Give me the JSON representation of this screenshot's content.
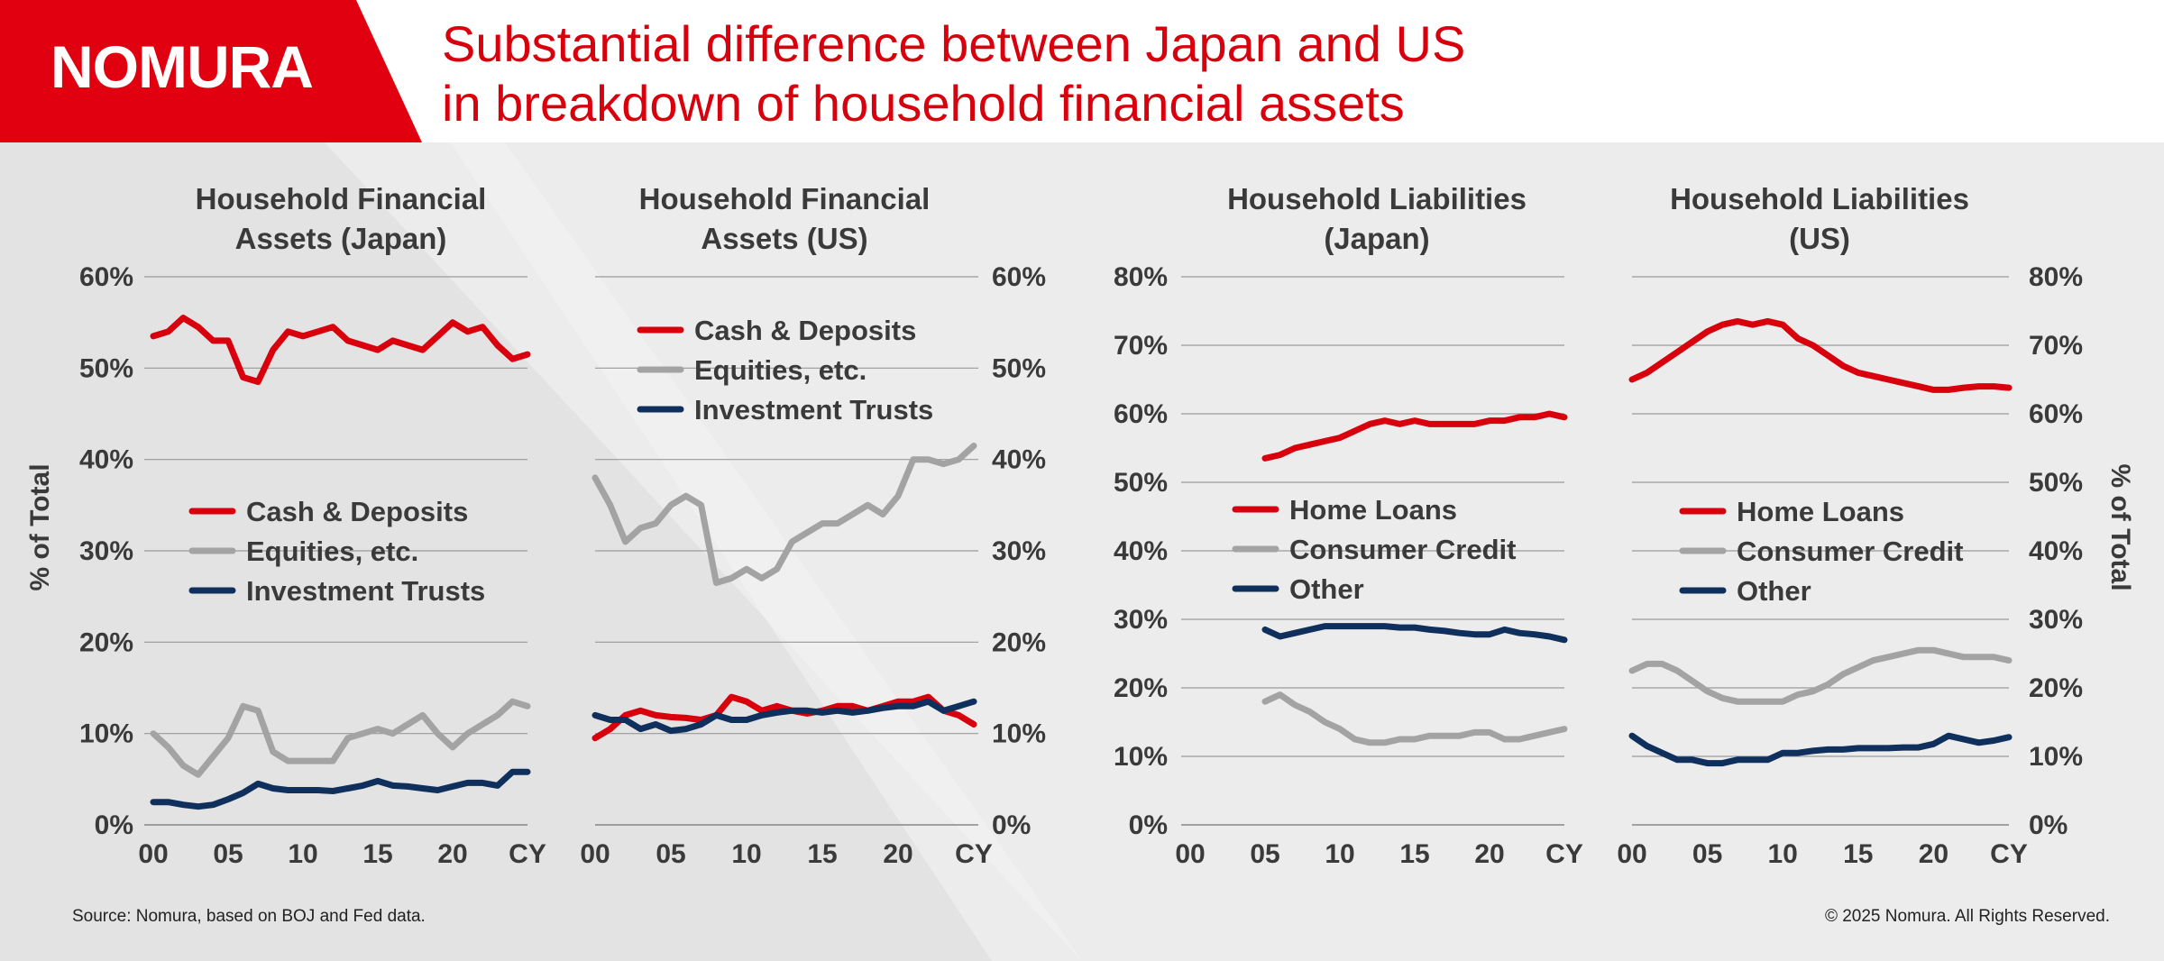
{
  "header": {
    "logo": "NOMURA",
    "title_line1": "Substantial difference between Japan and US",
    "title_line2": "in breakdown of household financial assets"
  },
  "footer": {
    "source": "Source: Nomura, based on BOJ and Fed data.",
    "copyright": "© 2025 Nomura. All Rights Reserved."
  },
  "colors": {
    "red": "#d9000d",
    "gray": "#a3a3a3",
    "navy": "#0f2f5c",
    "brand": "#e1000f"
  },
  "axis_labels": {
    "left_ylabel": "% of Total",
    "right_ylabel": "% of Total"
  },
  "chart_data": [
    {
      "id": "assets_japan",
      "type": "line",
      "title": [
        "Household Financial",
        "Assets (Japan)"
      ],
      "ylim": [
        0,
        60
      ],
      "yticks": [
        "0%",
        "10%",
        "20%",
        "30%",
        "40%",
        "50%",
        "60%"
      ],
      "xlim": [
        2000,
        2025
      ],
      "xticks": [
        "00",
        "05",
        "10",
        "15",
        "20",
        "CY"
      ],
      "legend": "center-left",
      "grid": true,
      "series": [
        {
          "name": "Cash & Deposits",
          "color": "red",
          "x": [
            2000,
            2001,
            2002,
            2003,
            2004,
            2005,
            2006,
            2007,
            2008,
            2009,
            2010,
            2011,
            2012,
            2013,
            2014,
            2015,
            2016,
            2017,
            2018,
            2019,
            2020,
            2021,
            2022,
            2023,
            2024,
            2025
          ],
          "values": [
            53.5,
            54,
            55.5,
            54.5,
            53,
            53,
            49,
            48.5,
            52,
            54,
            53.5,
            54,
            54.5,
            53,
            52.5,
            52,
            53,
            52.5,
            52,
            53.5,
            55,
            54,
            54.5,
            52.5,
            51,
            51.5
          ]
        },
        {
          "name": "Equities, etc.",
          "color": "gray",
          "x": [
            2000,
            2001,
            2002,
            2003,
            2004,
            2005,
            2006,
            2007,
            2008,
            2009,
            2010,
            2011,
            2012,
            2013,
            2014,
            2015,
            2016,
            2017,
            2018,
            2019,
            2020,
            2021,
            2022,
            2023,
            2024,
            2025
          ],
          "values": [
            10,
            8.5,
            6.5,
            5.5,
            7.5,
            9.5,
            13,
            12.5,
            8,
            7,
            7,
            7,
            7,
            9.5,
            10,
            10.5,
            10,
            11,
            12,
            10,
            8.5,
            10,
            11,
            12,
            13.5,
            13
          ]
        },
        {
          "name": "Investment Trusts",
          "color": "navy",
          "x": [
            2000,
            2001,
            2002,
            2003,
            2004,
            2005,
            2006,
            2007,
            2008,
            2009,
            2010,
            2011,
            2012,
            2013,
            2014,
            2015,
            2016,
            2017,
            2018,
            2019,
            2020,
            2021,
            2022,
            2023,
            2024,
            2025
          ],
          "values": [
            2.5,
            2.5,
            2.2,
            2,
            2.2,
            2.8,
            3.5,
            4.5,
            4,
            3.8,
            3.8,
            3.8,
            3.7,
            4,
            4.3,
            4.8,
            4.3,
            4.2,
            4,
            3.8,
            4.2,
            4.6,
            4.6,
            4.3,
            5.8,
            5.8
          ]
        }
      ]
    },
    {
      "id": "assets_us",
      "type": "line",
      "title": [
        "Household Financial",
        "Assets (US)"
      ],
      "ylim": [
        0,
        60
      ],
      "yticks": [
        "0%",
        "10%",
        "20%",
        "30%",
        "40%",
        "50%",
        "60%"
      ],
      "xlim": [
        2000,
        2025
      ],
      "xticks": [
        "00",
        "05",
        "10",
        "15",
        "20",
        "CY"
      ],
      "legend": "top-left",
      "grid": true,
      "series": [
        {
          "name": "Cash & Deposits",
          "color": "red",
          "x": [
            2000,
            2001,
            2002,
            2003,
            2004,
            2005,
            2006,
            2007,
            2008,
            2009,
            2010,
            2011,
            2012,
            2013,
            2014,
            2015,
            2016,
            2017,
            2018,
            2019,
            2020,
            2021,
            2022,
            2023,
            2024,
            2025
          ],
          "values": [
            9.5,
            10.5,
            12,
            12.5,
            12,
            11.8,
            11.7,
            11.5,
            12,
            14,
            13.5,
            12.5,
            13,
            12.5,
            12.2,
            12.5,
            13,
            13,
            12.5,
            13,
            13.5,
            13.5,
            14,
            12.5,
            12,
            11
          ]
        },
        {
          "name": "Equities, etc.",
          "color": "gray",
          "x": [
            2000,
            2001,
            2002,
            2003,
            2004,
            2005,
            2006,
            2007,
            2008,
            2009,
            2010,
            2011,
            2012,
            2013,
            2014,
            2015,
            2016,
            2017,
            2018,
            2019,
            2020,
            2021,
            2022,
            2023,
            2024,
            2025
          ],
          "values": [
            38,
            35,
            31,
            32.5,
            33,
            35,
            36,
            35,
            26.5,
            27,
            28,
            27,
            28,
            31,
            32,
            33,
            33,
            34,
            35,
            34,
            36,
            40,
            40,
            39.5,
            40,
            41.5
          ]
        },
        {
          "name": "Investment Trusts",
          "color": "navy",
          "x": [
            2000,
            2001,
            2002,
            2003,
            2004,
            2005,
            2006,
            2007,
            2008,
            2009,
            2010,
            2011,
            2012,
            2013,
            2014,
            2015,
            2016,
            2017,
            2018,
            2019,
            2020,
            2021,
            2022,
            2023,
            2024,
            2025
          ],
          "values": [
            12,
            11.5,
            11.5,
            10.5,
            11,
            10.3,
            10.5,
            11,
            12,
            11.5,
            11.5,
            12,
            12.3,
            12.5,
            12.5,
            12.3,
            12.5,
            12.3,
            12.5,
            12.8,
            13,
            13,
            13.5,
            12.5,
            13,
            13.5
          ]
        }
      ]
    },
    {
      "id": "liab_japan",
      "type": "line",
      "title": [
        "Household Liabilities",
        "(Japan)"
      ],
      "ylim": [
        0,
        80
      ],
      "yticks": [
        "0%",
        "10%",
        "20%",
        "30%",
        "40%",
        "50%",
        "60%",
        "70%",
        "80%"
      ],
      "xlim": [
        2000,
        2025
      ],
      "xticks": [
        "00",
        "05",
        "10",
        "15",
        "20",
        "CY"
      ],
      "legend": "center-left",
      "grid": true,
      "series": [
        {
          "name": "Home Loans",
          "color": "red",
          "x": [
            2005,
            2006,
            2007,
            2008,
            2009,
            2010,
            2011,
            2012,
            2013,
            2014,
            2015,
            2016,
            2017,
            2018,
            2019,
            2020,
            2021,
            2022,
            2023,
            2024,
            2025
          ],
          "values": [
            53.5,
            54,
            55,
            55.5,
            56,
            56.5,
            57.5,
            58.5,
            59,
            58.5,
            59,
            58.5,
            58.5,
            58.5,
            58.5,
            59,
            59,
            59.5,
            59.5,
            60,
            59.5
          ]
        },
        {
          "name": "Consumer Credit",
          "color": "gray",
          "x": [
            2005,
            2006,
            2007,
            2008,
            2009,
            2010,
            2011,
            2012,
            2013,
            2014,
            2015,
            2016,
            2017,
            2018,
            2019,
            2020,
            2021,
            2022,
            2023,
            2024,
            2025
          ],
          "values": [
            18,
            19,
            17.5,
            16.5,
            15,
            14,
            12.5,
            12,
            12,
            12.5,
            12.5,
            13,
            13,
            13,
            13.5,
            13.5,
            12.5,
            12.5,
            13,
            13.5,
            14
          ]
        },
        {
          "name": "Other",
          "color": "navy",
          "x": [
            2005,
            2006,
            2007,
            2008,
            2009,
            2010,
            2011,
            2012,
            2013,
            2014,
            2015,
            2016,
            2017,
            2018,
            2019,
            2020,
            2021,
            2022,
            2023,
            2024,
            2025
          ],
          "values": [
            28.5,
            27.5,
            28,
            28.5,
            29,
            29,
            29,
            29,
            29,
            28.8,
            28.8,
            28.5,
            28.3,
            28,
            27.8,
            27.8,
            28.5,
            28,
            27.8,
            27.5,
            27
          ]
        }
      ]
    },
    {
      "id": "liab_us",
      "type": "line",
      "title": [
        "Household Liabilities",
        "(US)"
      ],
      "ylim": [
        0,
        80
      ],
      "yticks": [
        "0%",
        "10%",
        "20%",
        "30%",
        "40%",
        "50%",
        "60%",
        "70%",
        "80%"
      ],
      "xlim": [
        2000,
        2025
      ],
      "xticks": [
        "00",
        "05",
        "10",
        "15",
        "20",
        "CY"
      ],
      "legend": "center-left",
      "grid": true,
      "series": [
        {
          "name": "Home Loans",
          "color": "red",
          "x": [
            2000,
            2001,
            2002,
            2003,
            2004,
            2005,
            2006,
            2007,
            2008,
            2009,
            2010,
            2011,
            2012,
            2013,
            2014,
            2015,
            2016,
            2017,
            2018,
            2019,
            2020,
            2021,
            2022,
            2023,
            2024,
            2025
          ],
          "values": [
            65,
            66,
            67.5,
            69,
            70.5,
            72,
            73,
            73.5,
            73,
            73.5,
            73,
            71,
            70,
            68.5,
            67,
            66,
            65.5,
            65,
            64.5,
            64,
            63.5,
            63.5,
            63.8,
            64,
            64,
            63.8
          ]
        },
        {
          "name": "Consumer Credit",
          "color": "gray",
          "x": [
            2000,
            2001,
            2002,
            2003,
            2004,
            2005,
            2006,
            2007,
            2008,
            2009,
            2010,
            2011,
            2012,
            2013,
            2014,
            2015,
            2016,
            2017,
            2018,
            2019,
            2020,
            2021,
            2022,
            2023,
            2024,
            2025
          ],
          "values": [
            22.5,
            23.5,
            23.5,
            22.5,
            21,
            19.5,
            18.5,
            18,
            18,
            18,
            18,
            19,
            19.5,
            20.5,
            22,
            23,
            24,
            24.5,
            25,
            25.5,
            25.5,
            25,
            24.5,
            24.5,
            24.5,
            24
          ]
        },
        {
          "name": "Other",
          "color": "navy",
          "x": [
            2000,
            2001,
            2002,
            2003,
            2004,
            2005,
            2006,
            2007,
            2008,
            2009,
            2010,
            2011,
            2012,
            2013,
            2014,
            2015,
            2016,
            2017,
            2018,
            2019,
            2020,
            2021,
            2022,
            2023,
            2024,
            2025
          ],
          "values": [
            13,
            11.5,
            10.5,
            9.5,
            9.5,
            9,
            9,
            9.5,
            9.5,
            9.5,
            10.5,
            10.5,
            10.8,
            11,
            11,
            11.2,
            11.2,
            11.2,
            11.3,
            11.3,
            11.8,
            13,
            12.5,
            12,
            12.3,
            12.8
          ]
        }
      ]
    }
  ]
}
